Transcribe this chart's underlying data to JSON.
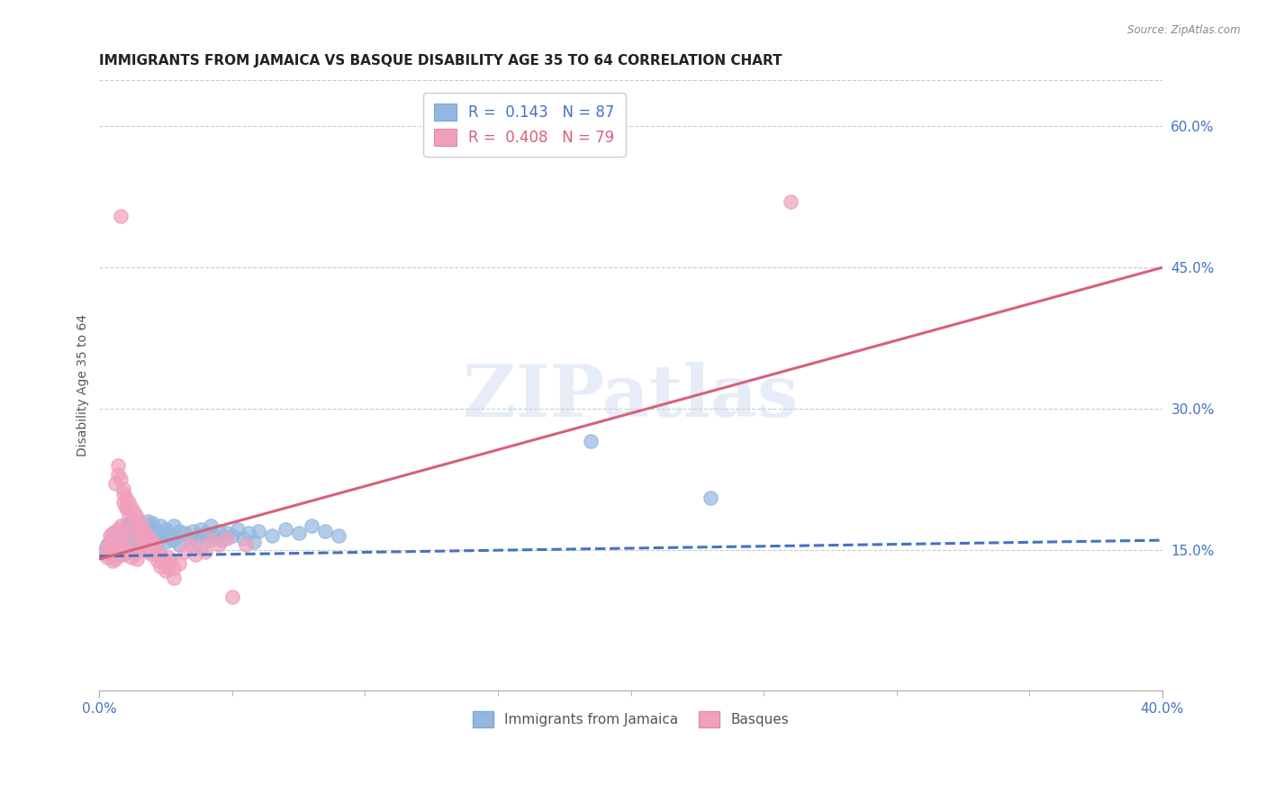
{
  "title": "IMMIGRANTS FROM JAMAICA VS BASQUE DISABILITY AGE 35 TO 64 CORRELATION CHART",
  "source": "Source: ZipAtlas.com",
  "ylabel": "Disability Age 35 to 64",
  "x_min": 0.0,
  "x_max": 0.4,
  "y_min": 0.0,
  "y_max": 0.65,
  "x_tick_positions": [
    0.0,
    0.4
  ],
  "x_tick_labels": [
    "0.0%",
    "40.0%"
  ],
  "y_ticks_right": [
    0.15,
    0.3,
    0.45,
    0.6
  ],
  "y_tick_labels_right": [
    "15.0%",
    "30.0%",
    "45.0%",
    "60.0%"
  ],
  "watermark": "ZIPatlas",
  "legend_label_bottom": [
    "Immigrants from Jamaica",
    "Basques"
  ],
  "line_blue": "#4472c4",
  "line_pink": "#d9607a",
  "blue_scatter_color": "#93b8e0",
  "pink_scatter_color": "#f0a0bc",
  "blue_scatter": [
    [
      0.002,
      0.15
    ],
    [
      0.003,
      0.145
    ],
    [
      0.003,
      0.155
    ],
    [
      0.004,
      0.148
    ],
    [
      0.004,
      0.158
    ],
    [
      0.005,
      0.152
    ],
    [
      0.005,
      0.16
    ],
    [
      0.005,
      0.143
    ],
    [
      0.006,
      0.165
    ],
    [
      0.006,
      0.155
    ],
    [
      0.006,
      0.148
    ],
    [
      0.007,
      0.17
    ],
    [
      0.007,
      0.162
    ],
    [
      0.007,
      0.158
    ],
    [
      0.008,
      0.168
    ],
    [
      0.008,
      0.155
    ],
    [
      0.008,
      0.145
    ],
    [
      0.009,
      0.172
    ],
    [
      0.009,
      0.16
    ],
    [
      0.009,
      0.15
    ],
    [
      0.01,
      0.175
    ],
    [
      0.01,
      0.165
    ],
    [
      0.01,
      0.155
    ],
    [
      0.011,
      0.178
    ],
    [
      0.011,
      0.168
    ],
    [
      0.011,
      0.158
    ],
    [
      0.012,
      0.18
    ],
    [
      0.012,
      0.17
    ],
    [
      0.012,
      0.16
    ],
    [
      0.013,
      0.175
    ],
    [
      0.013,
      0.165
    ],
    [
      0.013,
      0.155
    ],
    [
      0.014,
      0.172
    ],
    [
      0.014,
      0.162
    ],
    [
      0.015,
      0.178
    ],
    [
      0.015,
      0.168
    ],
    [
      0.015,
      0.158
    ],
    [
      0.016,
      0.175
    ],
    [
      0.016,
      0.165
    ],
    [
      0.017,
      0.172
    ],
    [
      0.017,
      0.162
    ],
    [
      0.018,
      0.18
    ],
    [
      0.018,
      0.168
    ],
    [
      0.019,
      0.175
    ],
    [
      0.019,
      0.16
    ],
    [
      0.02,
      0.178
    ],
    [
      0.02,
      0.165
    ],
    [
      0.021,
      0.172
    ],
    [
      0.022,
      0.168
    ],
    [
      0.022,
      0.158
    ],
    [
      0.023,
      0.175
    ],
    [
      0.024,
      0.165
    ],
    [
      0.025,
      0.172
    ],
    [
      0.025,
      0.158
    ],
    [
      0.026,
      0.168
    ],
    [
      0.027,
      0.162
    ],
    [
      0.028,
      0.175
    ],
    [
      0.028,
      0.16
    ],
    [
      0.03,
      0.17
    ],
    [
      0.03,
      0.155
    ],
    [
      0.032,
      0.168
    ],
    [
      0.034,
      0.162
    ],
    [
      0.035,
      0.17
    ],
    [
      0.036,
      0.158
    ],
    [
      0.037,
      0.165
    ],
    [
      0.038,
      0.172
    ],
    [
      0.04,
      0.168
    ],
    [
      0.041,
      0.162
    ],
    [
      0.042,
      0.175
    ],
    [
      0.043,
      0.165
    ],
    [
      0.045,
      0.17
    ],
    [
      0.046,
      0.16
    ],
    [
      0.048,
      0.168
    ],
    [
      0.05,
      0.165
    ],
    [
      0.052,
      0.172
    ],
    [
      0.054,
      0.162
    ],
    [
      0.056,
      0.168
    ],
    [
      0.058,
      0.158
    ],
    [
      0.06,
      0.17
    ],
    [
      0.065,
      0.165
    ],
    [
      0.07,
      0.172
    ],
    [
      0.075,
      0.168
    ],
    [
      0.08,
      0.175
    ],
    [
      0.085,
      0.17
    ],
    [
      0.09,
      0.165
    ],
    [
      0.185,
      0.265
    ],
    [
      0.23,
      0.205
    ]
  ],
  "pink_scatter": [
    [
      0.002,
      0.148
    ],
    [
      0.003,
      0.152
    ],
    [
      0.003,
      0.142
    ],
    [
      0.004,
      0.155
    ],
    [
      0.004,
      0.145
    ],
    [
      0.004,
      0.165
    ],
    [
      0.005,
      0.158
    ],
    [
      0.005,
      0.148
    ],
    [
      0.005,
      0.168
    ],
    [
      0.005,
      0.138
    ],
    [
      0.006,
      0.16
    ],
    [
      0.006,
      0.15
    ],
    [
      0.006,
      0.17
    ],
    [
      0.006,
      0.14
    ],
    [
      0.006,
      0.22
    ],
    [
      0.007,
      0.162
    ],
    [
      0.007,
      0.152
    ],
    [
      0.007,
      0.172
    ],
    [
      0.007,
      0.23
    ],
    [
      0.007,
      0.24
    ],
    [
      0.008,
      0.165
    ],
    [
      0.008,
      0.155
    ],
    [
      0.008,
      0.175
    ],
    [
      0.008,
      0.225
    ],
    [
      0.009,
      0.215
    ],
    [
      0.009,
      0.21
    ],
    [
      0.009,
      0.2
    ],
    [
      0.009,
      0.145
    ],
    [
      0.01,
      0.205
    ],
    [
      0.01,
      0.195
    ],
    [
      0.01,
      0.148
    ],
    [
      0.01,
      0.195
    ],
    [
      0.011,
      0.2
    ],
    [
      0.011,
      0.185
    ],
    [
      0.011,
      0.15
    ],
    [
      0.012,
      0.195
    ],
    [
      0.012,
      0.165
    ],
    [
      0.012,
      0.142
    ],
    [
      0.013,
      0.19
    ],
    [
      0.013,
      0.175
    ],
    [
      0.013,
      0.145
    ],
    [
      0.014,
      0.185
    ],
    [
      0.014,
      0.17
    ],
    [
      0.014,
      0.14
    ],
    [
      0.015,
      0.18
    ],
    [
      0.015,
      0.165
    ],
    [
      0.015,
      0.152
    ],
    [
      0.016,
      0.175
    ],
    [
      0.016,
      0.162
    ],
    [
      0.017,
      0.168
    ],
    [
      0.018,
      0.155
    ],
    [
      0.018,
      0.148
    ],
    [
      0.019,
      0.162
    ],
    [
      0.02,
      0.158
    ],
    [
      0.02,
      0.145
    ],
    [
      0.021,
      0.152
    ],
    [
      0.022,
      0.148
    ],
    [
      0.022,
      0.138
    ],
    [
      0.023,
      0.145
    ],
    [
      0.023,
      0.132
    ],
    [
      0.024,
      0.14
    ],
    [
      0.025,
      0.135
    ],
    [
      0.025,
      0.128
    ],
    [
      0.026,
      0.142
    ],
    [
      0.026,
      0.13
    ],
    [
      0.027,
      0.138
    ],
    [
      0.028,
      0.13
    ],
    [
      0.028,
      0.12
    ],
    [
      0.03,
      0.135
    ],
    [
      0.032,
      0.148
    ],
    [
      0.034,
      0.155
    ],
    [
      0.036,
      0.145
    ],
    [
      0.038,
      0.152
    ],
    [
      0.04,
      0.148
    ],
    [
      0.042,
      0.16
    ],
    [
      0.045,
      0.155
    ],
    [
      0.048,
      0.162
    ],
    [
      0.05,
      0.1
    ],
    [
      0.055,
      0.155
    ],
    [
      0.008,
      0.505
    ],
    [
      0.26,
      0.52
    ]
  ],
  "blue_line": [
    [
      0.0,
      0.143
    ],
    [
      0.4,
      0.16
    ]
  ],
  "pink_line": [
    [
      0.0,
      0.14
    ],
    [
      0.4,
      0.45
    ]
  ],
  "background_color": "#ffffff",
  "grid_color": "#cccccc",
  "title_fontsize": 11,
  "axis_label_fontsize": 9
}
